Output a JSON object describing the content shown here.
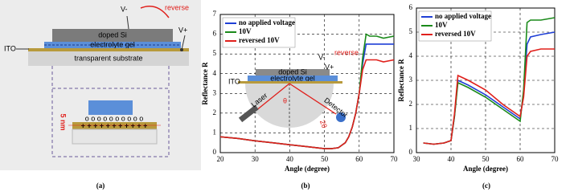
{
  "diagram_a": {
    "v_minus": "V-",
    "reverse": "reverse",
    "v_plus": "V+",
    "doped_si": "doped Si",
    "electrolyte": "electrolyte gel",
    "ito": "ITO",
    "substrate": "transparent substrate",
    "thickness": "5 nm",
    "charges_top": "o o o o o o o o o o",
    "charges_bottom": "+ + + + + + + + + + +"
  },
  "inset_b": {
    "doped_si": "doped Si",
    "electrolyte": "electrolyte gel",
    "ito": "ITO",
    "v_minus": "V-",
    "v_plus": "V+",
    "reverse": "reverse",
    "laser": "Laser",
    "detector": "Detector",
    "theta": "θ",
    "two_theta": "2θ"
  },
  "captions": [
    "(a)",
    "(b)",
    "(c)"
  ],
  "chart_data": [
    {
      "type": "line",
      "x_label": "Angle (degree)",
      "y_label": "Reflectance R",
      "x": [
        20,
        25,
        30,
        35,
        40,
        45,
        50,
        52,
        54,
        56,
        57,
        58,
        59,
        60,
        61,
        62,
        63,
        65,
        67,
        70
      ],
      "series": [
        {
          "name": "no applied voltage",
          "color": "#1f3fd6",
          "values": [
            0.8,
            0.72,
            0.6,
            0.5,
            0.4,
            0.3,
            0.2,
            0.2,
            0.25,
            0.5,
            0.8,
            1.3,
            2.0,
            3.0,
            4.5,
            5.5,
            5.5,
            5.5,
            5.5,
            5.5
          ]
        },
        {
          "name": "10V",
          "color": "#1a8a1a",
          "values": [
            0.8,
            0.72,
            0.6,
            0.5,
            0.4,
            0.3,
            0.2,
            0.2,
            0.25,
            0.5,
            0.8,
            1.3,
            2.0,
            3.0,
            4.8,
            6.0,
            5.9,
            5.9,
            5.8,
            5.9
          ]
        },
        {
          "name": "reversed 10V",
          "color": "#e0201c",
          "values": [
            0.8,
            0.72,
            0.6,
            0.5,
            0.4,
            0.3,
            0.2,
            0.2,
            0.25,
            0.5,
            0.8,
            1.3,
            2.0,
            3.0,
            4.2,
            4.7,
            4.7,
            4.7,
            4.6,
            4.7
          ]
        }
      ],
      "xlim": [
        20,
        70
      ],
      "xticks": [
        20,
        30,
        40,
        50,
        60,
        70
      ],
      "ylim": [
        0,
        7
      ],
      "yticks": [
        0,
        1,
        2,
        3,
        4,
        5,
        6,
        7
      ],
      "grid": true,
      "legend": "upper-left"
    },
    {
      "type": "line",
      "x_label": "Angle (degree)",
      "y_label": "Reflectance R",
      "x": [
        32,
        35,
        38,
        40,
        41,
        42,
        45,
        50,
        55,
        58,
        60,
        61,
        62,
        63,
        66,
        70
      ],
      "series": [
        {
          "name": "no applied voltage",
          "color": "#1f3fd6",
          "values": [
            0.4,
            0.35,
            0.4,
            0.5,
            1.5,
            3.0,
            2.8,
            2.4,
            1.9,
            1.6,
            1.4,
            2.5,
            4.5,
            4.8,
            4.9,
            5.0
          ]
        },
        {
          "name": "10V",
          "color": "#1a8a1a",
          "values": [
            0.4,
            0.35,
            0.4,
            0.5,
            1.5,
            2.9,
            2.7,
            2.3,
            1.8,
            1.5,
            1.3,
            2.6,
            5.4,
            5.5,
            5.5,
            5.6
          ]
        },
        {
          "name": "reversed 10V",
          "color": "#e0201c",
          "values": [
            0.4,
            0.35,
            0.4,
            0.5,
            1.6,
            3.2,
            3.0,
            2.6,
            2.0,
            1.7,
            1.5,
            2.3,
            4.0,
            4.2,
            4.3,
            4.3
          ]
        }
      ],
      "xlim": [
        30,
        70
      ],
      "xticks": [
        30,
        40,
        50,
        60,
        70
      ],
      "ylim": [
        0,
        6
      ],
      "yticks": [
        0,
        1,
        2,
        3,
        4,
        5,
        6
      ],
      "grid": true,
      "legend": "upper-left"
    }
  ]
}
